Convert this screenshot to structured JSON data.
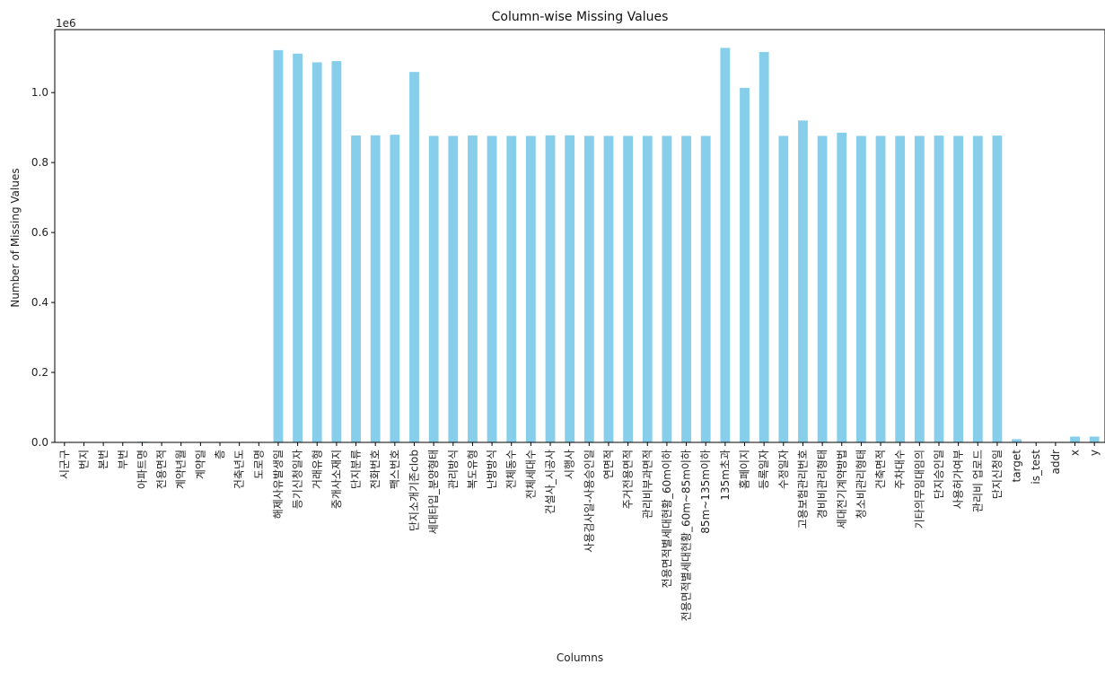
{
  "chart_data": {
    "type": "bar",
    "title": "Column-wise Missing Values",
    "xlabel": "Columns",
    "ylabel": "Number of Missing Values",
    "y_offset_label": "1e6",
    "ylim": [
      0,
      1180000
    ],
    "yticks": [
      0,
      200000,
      400000,
      600000,
      800000,
      1000000
    ],
    "ytick_labels": [
      "0.0",
      "0.2",
      "0.4",
      "0.6",
      "0.8",
      "1.0"
    ],
    "bar_color": "#87CEEB",
    "grid": false,
    "categories": [
      "시군구",
      "번지",
      "본번",
      "부번",
      "아파트명",
      "전용면적",
      "계약년월",
      "계약일",
      "층",
      "건축년도",
      "도로명",
      "해제사유발생일",
      "등기신청일자",
      "거래유형",
      "중개사소재지",
      "단지분류",
      "전화번호",
      "팩스번호",
      "단지소개기존clob",
      "세대타입_분양형태",
      "관리방식",
      "복도유형",
      "난방방식",
      "전체동수",
      "전체세대수",
      "건설사_시공사",
      "시행사",
      "사용검사일-사용승인일",
      "연면적",
      "주거전용면적",
      "관리비부과면적",
      "전용면적별세대현황_60m이하",
      "전용면적별세대현황_60m~85m이하",
      "85m~135m이하",
      "135m초과",
      "홈페이지",
      "등록일자",
      "수정일자",
      "고용보험관리번호",
      "경비비관리형태",
      "세대전기계약방법",
      "청소비관리형태",
      "건축면적",
      "주차대수",
      "기타의무임대임의",
      "단지승인일",
      "사용허가여부",
      "관리비 업로드",
      "단지신청일",
      "target",
      "is_test",
      "addr",
      "x",
      "y"
    ],
    "values": [
      0,
      225,
      75,
      75,
      2136,
      0,
      0,
      0,
      0,
      0,
      0,
      1121300,
      1111300,
      1086451,
      1090013,
      877273,
      877850,
      879348,
      1058958,
      876125,
      876125,
      877207,
      876125,
      876125,
      876125,
      877637,
      877834,
      876259,
      876125,
      876125,
      876125,
      876125,
      876125,
      876125,
      1127770,
      1013523,
      1116140,
      876170,
      920066,
      876125,
      885389,
      876125,
      876125,
      876125,
      876125,
      876854,
      876125,
      876125,
      876962,
      9272,
      0,
      0,
      16644,
      16644
    ]
  }
}
